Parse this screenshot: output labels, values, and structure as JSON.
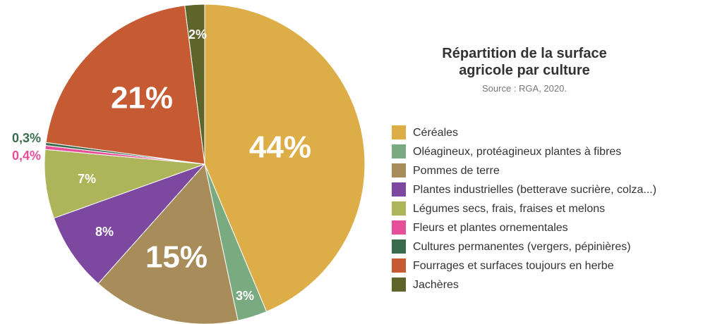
{
  "chart_data": {
    "type": "pie",
    "title": "Répartition de la surface agricole par culture",
    "subtitle": "Source : RGA, 2020.",
    "categories": [
      "Céréales",
      "Oléagineux, protéagineux plantes à fibres",
      "Pommes de terre",
      "Plantes industrielles (betterave sucrière, colza...)",
      "Légumes secs, frais, fraises et melons",
      "Fleurs et plantes ornementales",
      "Cultures permanentes (vergers, pépinières)",
      "Fourrages et surfaces toujours en herbe",
      "Jachères"
    ],
    "values": [
      44,
      3,
      15,
      8,
      7,
      0.4,
      0.3,
      21,
      2
    ],
    "value_labels": [
      "44%",
      "3%",
      "15%",
      "8%",
      "7%",
      "0,4%",
      "0,3%",
      "21%",
      "2%"
    ],
    "colors": [
      "#ddad48",
      "#7aab80",
      "#a88d5a",
      "#7d48a0",
      "#adb45a",
      "#e84f9b",
      "#3a6b4d",
      "#c55a33",
      "#5e652b"
    ]
  }
}
